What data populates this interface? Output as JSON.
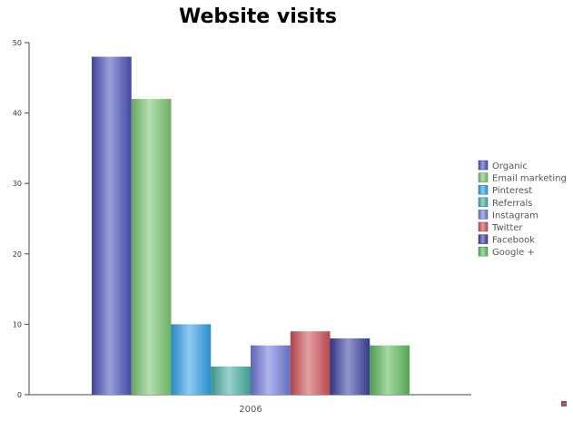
{
  "chart_data": {
    "type": "bar",
    "title": "Website visits",
    "categories": [
      "2006"
    ],
    "ylim": [
      0,
      50
    ],
    "yticks": [
      0,
      10,
      20,
      30,
      40,
      50
    ],
    "grid": false,
    "legend_position": "right",
    "series": [
      {
        "name": "Organic",
        "values": [
          48
        ],
        "color": "#4a4fb8"
      },
      {
        "name": "Email marketing",
        "values": [
          42
        ],
        "color": "#78c46e"
      },
      {
        "name": "Pinterest",
        "values": [
          10
        ],
        "color": "#2f9fe6"
      },
      {
        "name": "Referrals",
        "values": [
          4
        ],
        "color": "#45ada0"
      },
      {
        "name": "Instagram",
        "values": [
          7
        ],
        "color": "#6f78d8"
      },
      {
        "name": "Twitter",
        "values": [
          9
        ],
        "color": "#cc5055"
      },
      {
        "name": "Facebook",
        "values": [
          8
        ],
        "color": "#3a3f9c"
      },
      {
        "name": "Google +",
        "values": [
          7
        ],
        "color": "#5cb85a"
      }
    ]
  }
}
